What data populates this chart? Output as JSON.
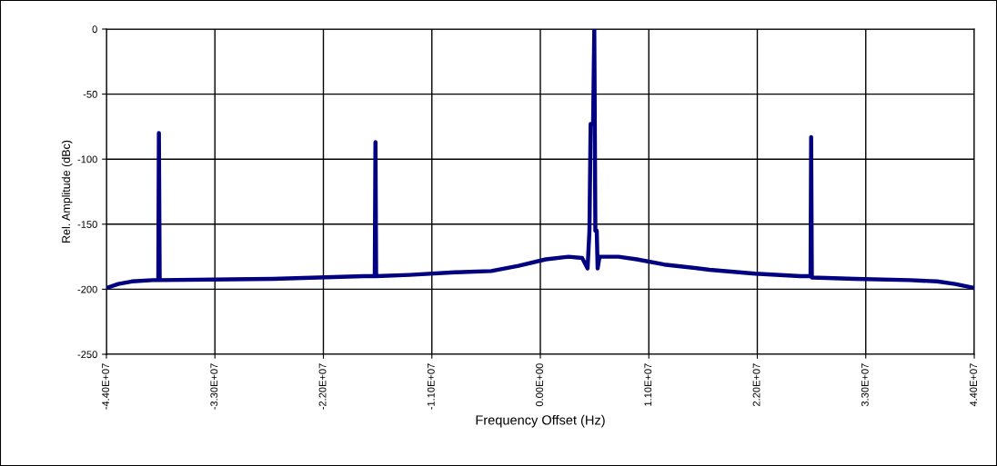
{
  "chart_data": {
    "type": "line",
    "xlabel": "Frequency Offset (Hz)",
    "ylabel": "Rel. Amplitude (dBc)",
    "xlim": [
      -44000000,
      44000000
    ],
    "ylim": [
      -250,
      0
    ],
    "xticks": [
      {
        "value": -44000000,
        "label": "-4.40E+07"
      },
      {
        "value": -33000000,
        "label": "-3.30E+07"
      },
      {
        "value": -22000000,
        "label": "-2.20E+07"
      },
      {
        "value": -11000000,
        "label": "-1.10E+07"
      },
      {
        "value": 0,
        "label": "0.00E+00"
      },
      {
        "value": 11000000,
        "label": "1.10E+07"
      },
      {
        "value": 22000000,
        "label": "2.20E+07"
      },
      {
        "value": 33000000,
        "label": "3.30E+07"
      },
      {
        "value": 44000000,
        "label": "4.40E+07"
      }
    ],
    "yticks": [
      0,
      -50,
      -100,
      -150,
      -200,
      -250
    ],
    "grid": true,
    "marker": "none",
    "line_style": "solid",
    "series": [
      {
        "color": "#000080",
        "x": [
          -44000000,
          -42800000,
          -41420000,
          -39300000,
          -38740000,
          -38680000,
          -38600000,
          -27120000,
          -17900000,
          -16790000,
          -16720000,
          -16650000,
          -13280000,
          -8670000,
          -4980000,
          -2210000,
          550000,
          2860000,
          4240000,
          4790000,
          4980000,
          5100000,
          5350000,
          5470000,
          5580000,
          5720000,
          5810000,
          6000000,
          7930000,
          9780000,
          12550000,
          17160000,
          21770000,
          26380000,
          27400000,
          27460000,
          27530000,
          31920000,
          37450000,
          40220000,
          42060000,
          44000000
        ],
        "values": [
          -199,
          -196,
          -194,
          -193,
          -193,
          -80,
          -193,
          -192,
          -190,
          -190,
          -87,
          -190,
          -189,
          -187,
          -186,
          -182,
          -177,
          -175,
          -176,
          -184,
          -155,
          -73,
          -73,
          0,
          -155,
          -155,
          -184,
          -175,
          -175,
          -177,
          -181,
          -185,
          -188,
          -190,
          -190,
          -83,
          -191,
          -192,
          -193,
          -194,
          -196,
          -199
        ]
      }
    ]
  }
}
